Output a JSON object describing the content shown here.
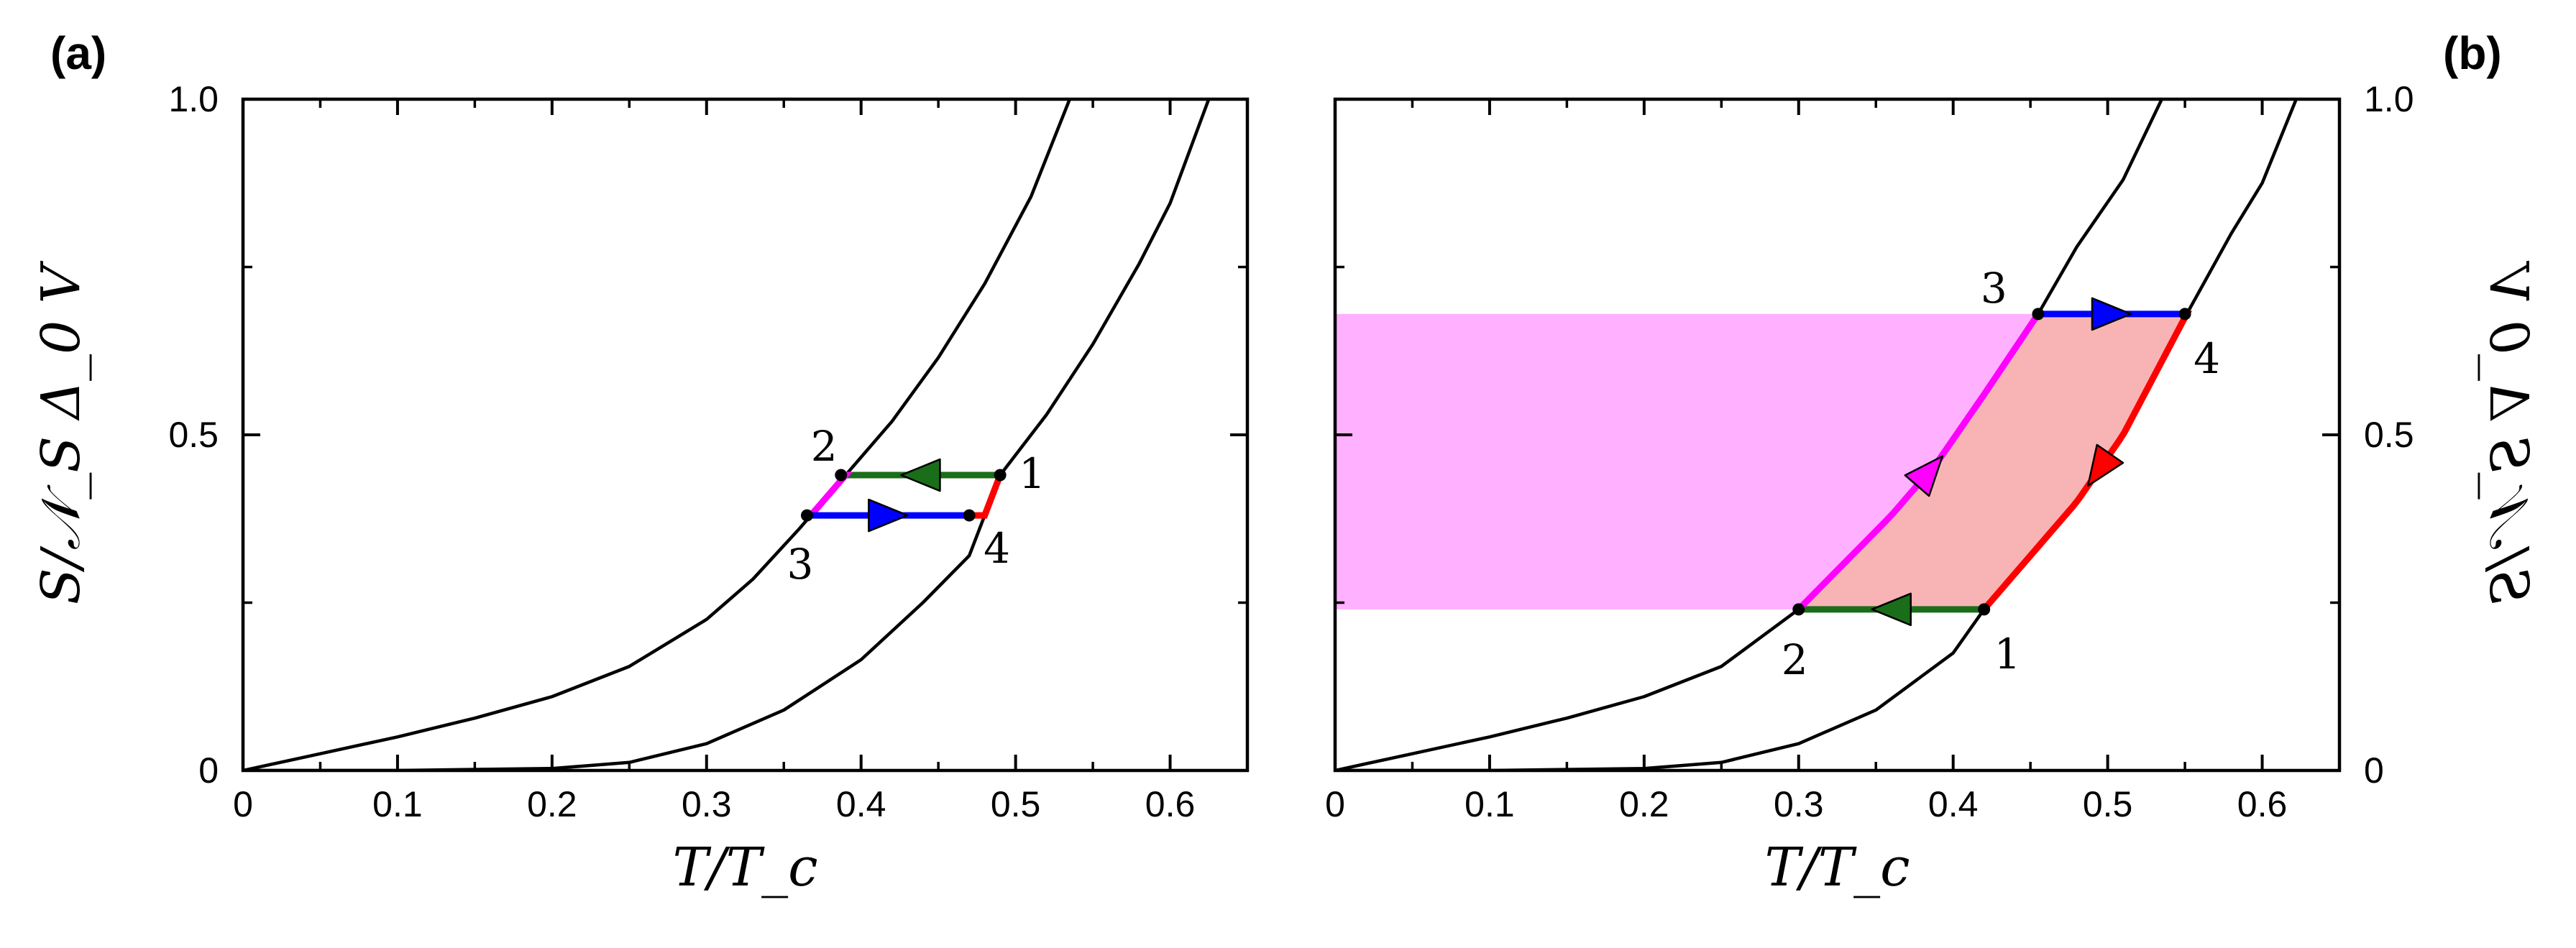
{
  "chart_data": [
    {
      "panel": "(a)",
      "type": "line",
      "xlabel": "T/T_c",
      "ylabel": "S/𝒩_S Δ_0 V",
      "xlim": [
        0,
        0.65
      ],
      "ylim": [
        0,
        1.0
      ],
      "x_ticks": [
        "0",
        "0.1",
        "0.2",
        "0.3",
        "0.4",
        "0.5",
        "0.6"
      ],
      "y_ticks": [
        "0",
        "0.5",
        "1.0"
      ],
      "y_axis_side": "left",
      "grid": false,
      "curves": [
        {
          "points": [
            [
              0,
              0
            ],
            [
              0.05,
              0.025
            ],
            [
              0.1,
              0.05
            ],
            [
              0.15,
              0.078
            ],
            [
              0.2,
              0.11
            ],
            [
              0.25,
              0.155
            ],
            [
              0.3,
              0.225
            ],
            [
              0.33,
              0.285
            ],
            [
              0.36,
              0.36
            ],
            [
              0.39,
              0.44
            ],
            [
              0.42,
              0.52
            ],
            [
              0.45,
              0.615
            ],
            [
              0.48,
              0.725
            ],
            [
              0.51,
              0.855
            ],
            [
              0.535,
              1.0
            ]
          ]
        },
        {
          "points": [
            [
              0,
              0
            ],
            [
              0.1,
              0.0
            ],
            [
              0.2,
              0.003
            ],
            [
              0.25,
              0.012
            ],
            [
              0.3,
              0.04
            ],
            [
              0.35,
              0.09
            ],
            [
              0.4,
              0.165
            ],
            [
              0.44,
              0.25
            ],
            [
              0.47,
              0.32
            ],
            [
              0.49,
              0.44
            ],
            [
              0.52,
              0.53
            ],
            [
              0.55,
              0.635
            ],
            [
              0.58,
              0.755
            ],
            [
              0.6,
              0.845
            ],
            [
              0.625,
              1.0
            ]
          ]
        }
      ],
      "cycle": {
        "points": [
          {
            "label": "1",
            "x": 0.49,
            "y": 0.44
          },
          {
            "label": "2",
            "x": 0.387,
            "y": 0.44
          },
          {
            "label": "3",
            "x": 0.365,
            "y": 0.38
          },
          {
            "label": "4",
            "x": 0.47,
            "y": 0.38
          }
        ],
        "segments": [
          {
            "from": "1",
            "to": "2",
            "color": "#1a6e1a"
          },
          {
            "from": "2",
            "to": "3",
            "color": "#ff00ff"
          },
          {
            "from": "3",
            "to": "4",
            "color": "#0000ff"
          },
          {
            "from": "4",
            "to": "1",
            "color": "#ff0000"
          }
        ]
      }
    },
    {
      "panel": "(b)",
      "type": "line",
      "xlabel": "T/T_c",
      "ylabel": "S/𝒩_S Δ_0 V",
      "xlim": [
        0,
        0.65
      ],
      "ylim": [
        0,
        1.0
      ],
      "x_ticks": [
        "0",
        "0.1",
        "0.2",
        "0.3",
        "0.4",
        "0.5",
        "0.6"
      ],
      "y_ticks": [
        "0",
        "0.5",
        "1.0"
      ],
      "y_axis_side": "right",
      "grid": false,
      "curves": [
        {
          "points": [
            [
              0,
              0
            ],
            [
              0.05,
              0.025
            ],
            [
              0.1,
              0.05
            ],
            [
              0.15,
              0.078
            ],
            [
              0.2,
              0.11
            ],
            [
              0.25,
              0.155
            ],
            [
              0.3,
              0.24
            ],
            [
              0.33,
              0.31
            ],
            [
              0.36,
              0.38
            ],
            [
              0.39,
              0.46
            ],
            [
              0.42,
              0.56
            ],
            [
              0.455,
              0.68
            ],
            [
              0.48,
              0.78
            ],
            [
              0.51,
              0.88
            ],
            [
              0.535,
              1.0
            ]
          ]
        },
        {
          "points": [
            [
              0,
              0
            ],
            [
              0.1,
              0.0
            ],
            [
              0.2,
              0.003
            ],
            [
              0.25,
              0.012
            ],
            [
              0.3,
              0.04
            ],
            [
              0.35,
              0.09
            ],
            [
              0.4,
              0.175
            ],
            [
              0.42,
              0.24
            ],
            [
              0.45,
              0.32
            ],
            [
              0.48,
              0.4
            ],
            [
              0.51,
              0.5
            ],
            [
              0.55,
              0.675
            ],
            [
              0.58,
              0.8
            ],
            [
              0.6,
              0.875
            ],
            [
              0.622,
              1.0
            ]
          ]
        }
      ],
      "cycle": {
        "points": [
          {
            "label": "1",
            "x": 0.42,
            "y": 0.24
          },
          {
            "label": "2",
            "x": 0.3,
            "y": 0.24
          },
          {
            "label": "3",
            "x": 0.455,
            "y": 0.68
          },
          {
            "label": "4",
            "x": 0.55,
            "y": 0.68
          }
        ],
        "segments": [
          {
            "from": "1",
            "to": "2",
            "color": "#1a6e1a"
          },
          {
            "from": "2",
            "to": "3",
            "color": "#ff00ff"
          },
          {
            "from": "3",
            "to": "4",
            "color": "#0000ff"
          },
          {
            "from": "4",
            "to": "1",
            "color": "#ff0000"
          }
        ]
      },
      "shaded_regions": [
        {
          "kind": "horizontal-band",
          "y_range": [
            0.24,
            0.68
          ],
          "x_from": 0,
          "color": "#ffb0ff"
        },
        {
          "kind": "cycle-interior",
          "color": "#f8b4b4"
        }
      ]
    }
  ]
}
